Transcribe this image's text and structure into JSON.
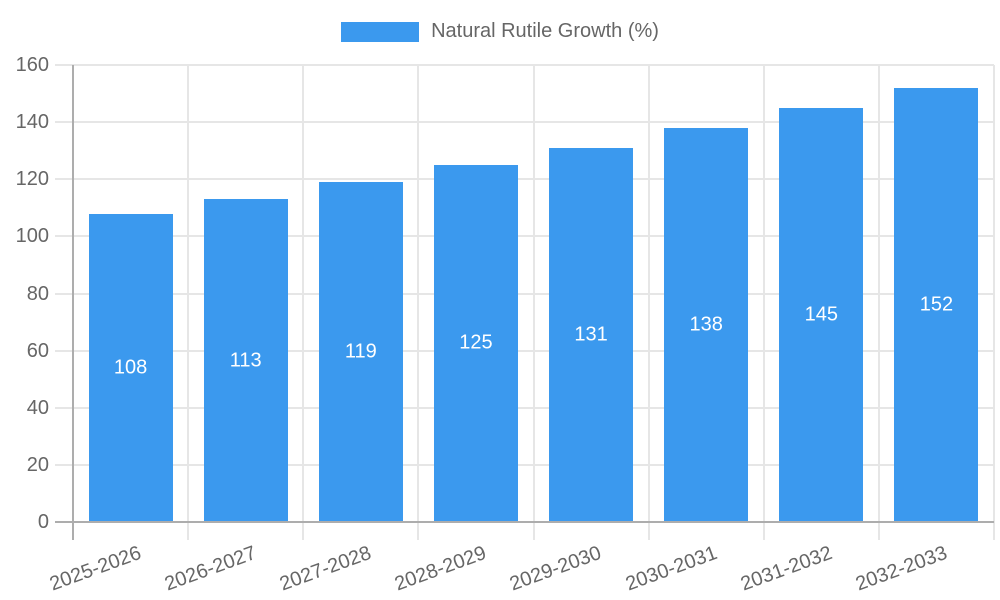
{
  "legend": {
    "label": "Natural Rutile Growth (%)"
  },
  "chart_data": {
    "type": "bar",
    "title": "",
    "xlabel": "",
    "ylabel": "",
    "categories": [
      "2025-2026",
      "2026-2027",
      "2027-2028",
      "2028-2029",
      "2029-2030",
      "2030-2031",
      "2031-2032",
      "2032-2033"
    ],
    "series": [
      {
        "name": "Natural Rutile Growth (%)",
        "values": [
          108,
          113,
          119,
          125,
          131,
          138,
          145,
          152
        ],
        "color": "#3B99EE"
      }
    ],
    "ylim": [
      0,
      160
    ],
    "ytick_step": 20,
    "ytick_labels": [
      "0",
      "20",
      "40",
      "60",
      "80",
      "100",
      "120",
      "140",
      "160"
    ],
    "grid": true,
    "legend_position": "top-center",
    "value_label_position": "inside-middle",
    "value_label_color": "#FFFFFF",
    "x_label_rotation_deg": -20,
    "colors": {
      "bar": "#3B99EE",
      "axis_line": "#ADADAD",
      "grid_line": "#E6E6E6",
      "text": "#666666"
    }
  }
}
